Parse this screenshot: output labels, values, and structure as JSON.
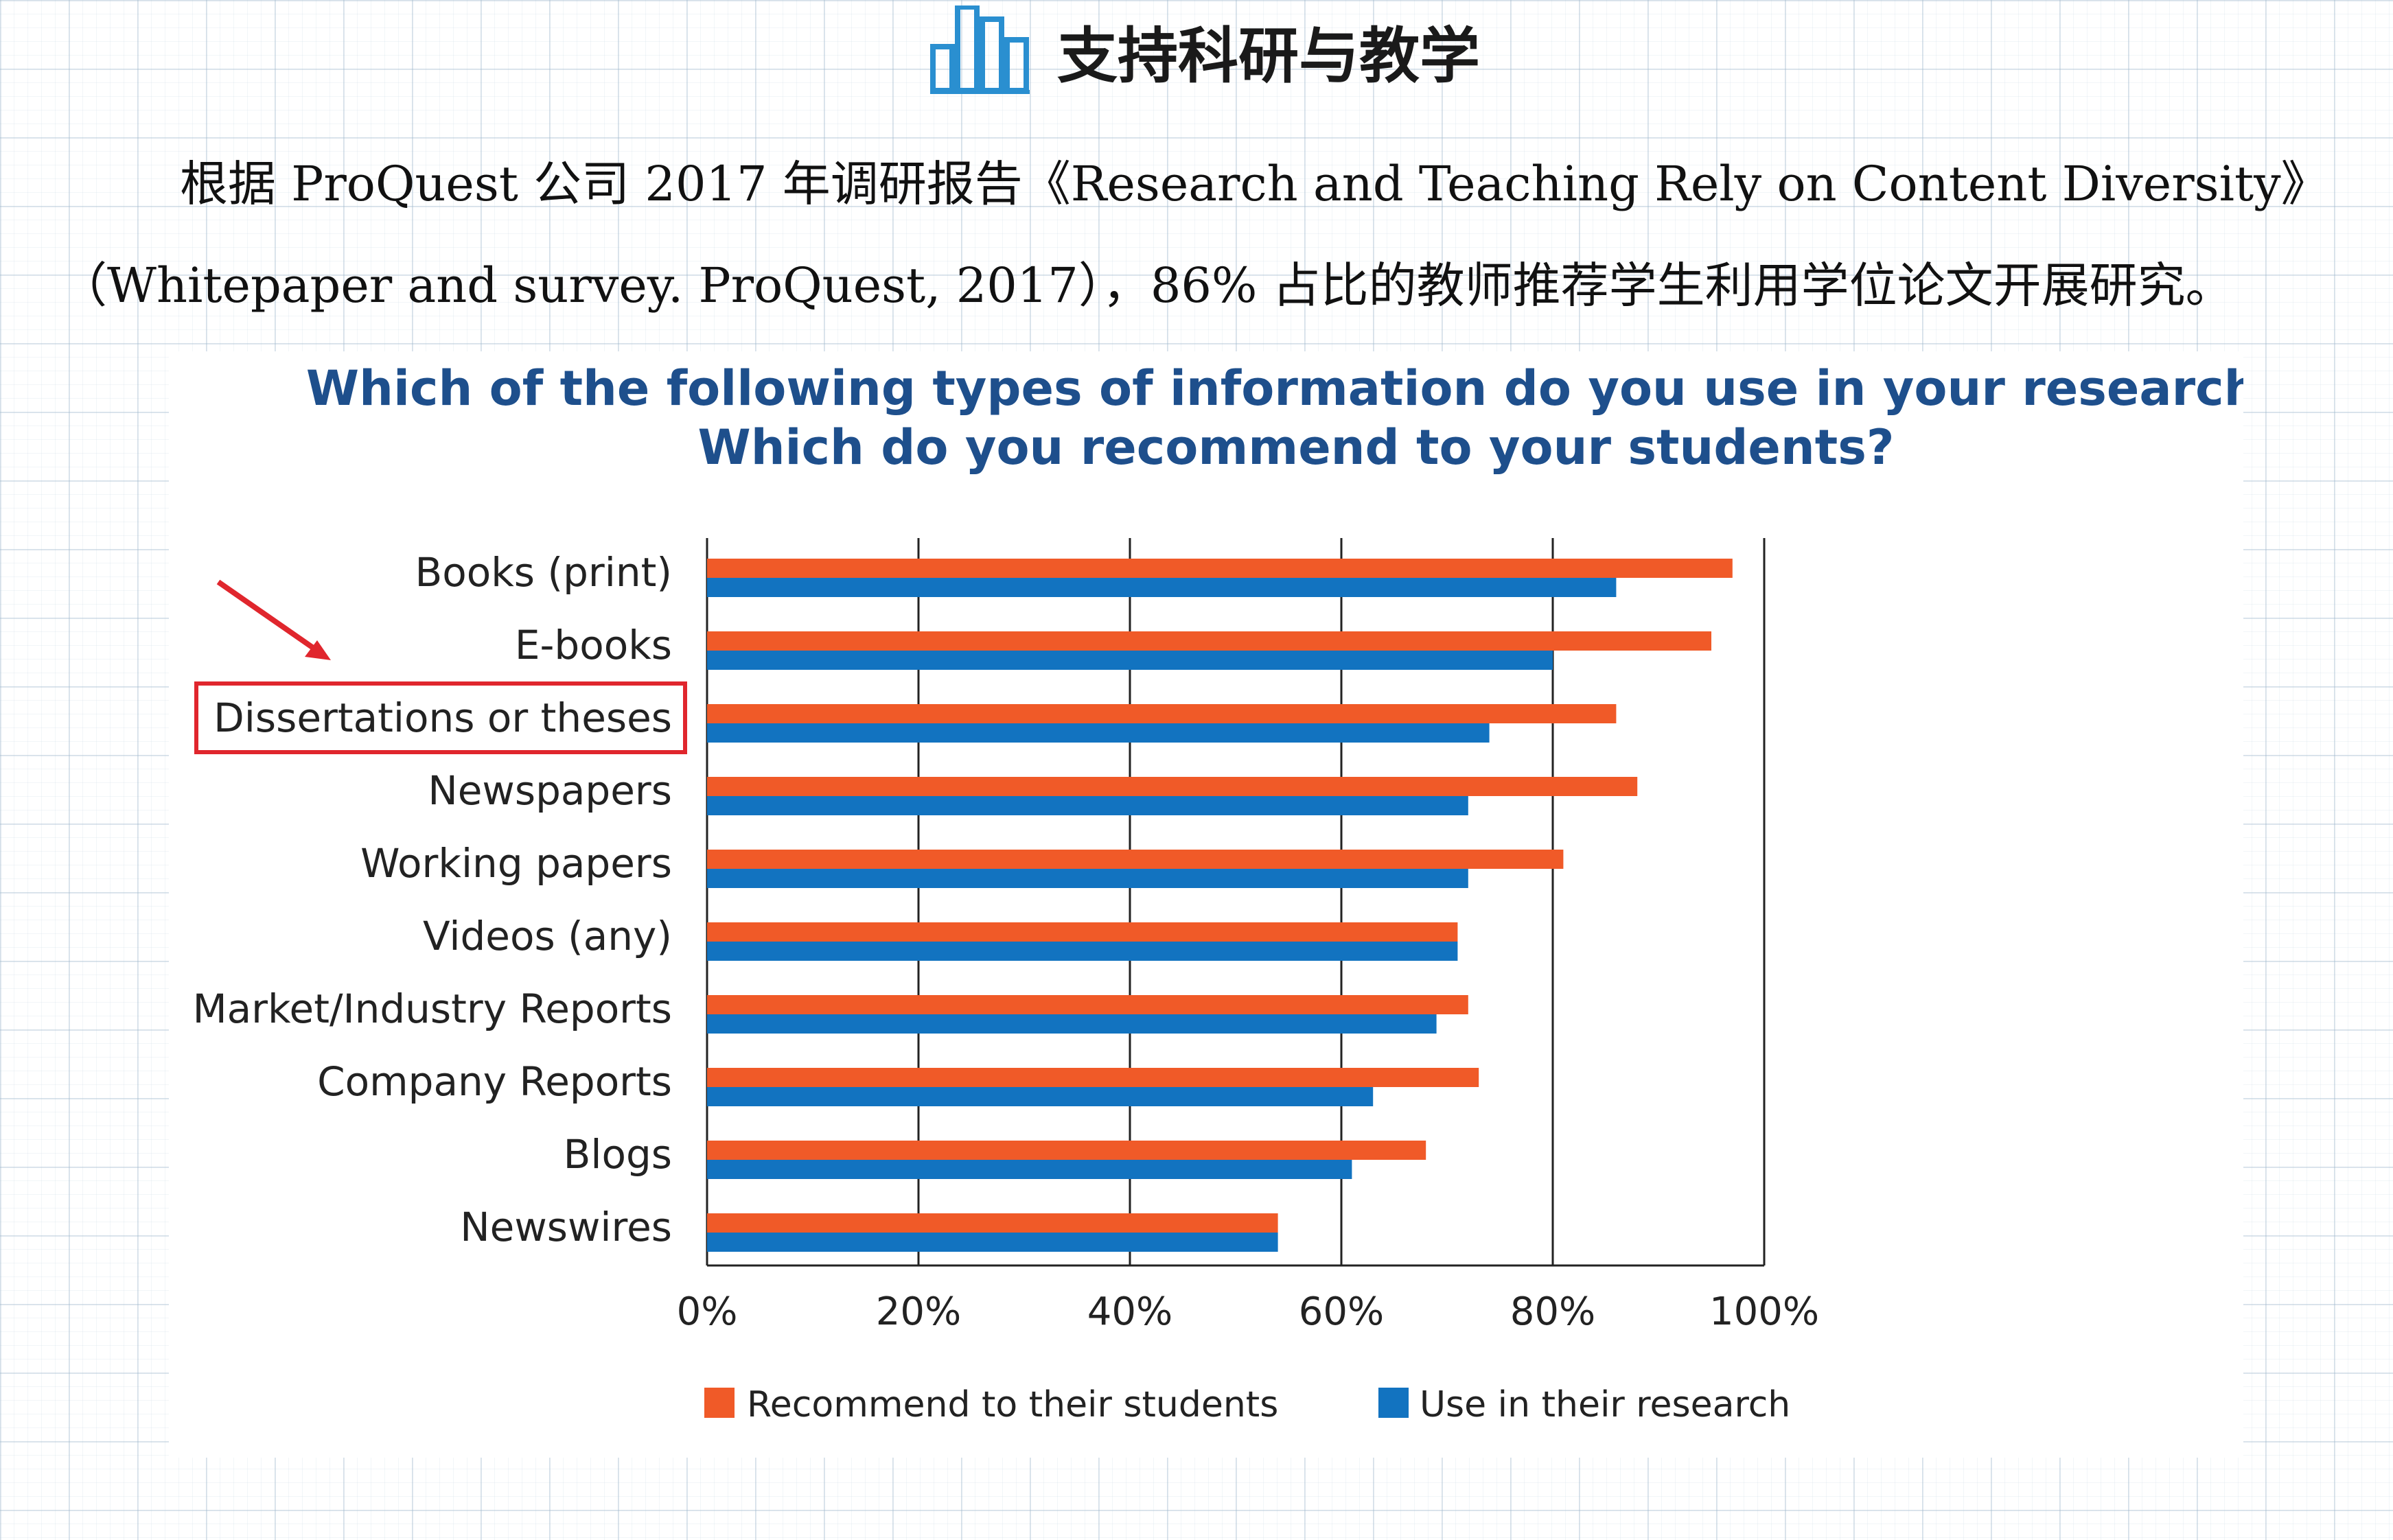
{
  "header": {
    "title": "支持科研与教学",
    "icon": "bar-chart-icon"
  },
  "intro": {
    "line1": "根据 ProQuest 公司 2017 年调研报告《Research and Teaching Rely on Content Diversity》",
    "line2": "（Whitepaper and survey. ProQuest, 2017），86% 占比的教师推荐学生利用学位论文开展研究。"
  },
  "colors": {
    "recommend": "#f05a28",
    "use": "#1273c0",
    "title": "#1e4f8c",
    "highlight": "#e0262d",
    "icon": "#2a8fd0"
  },
  "chart_data": {
    "type": "bar",
    "orientation": "horizontal",
    "title": "Which of the following types of information do you use in your research?",
    "subtitle": "Which do you recommend to your students?",
    "categories": [
      "Books (print)",
      "E-books",
      "Dissertations or theses",
      "Newspapers",
      "Working papers",
      "Videos (any)",
      "Market/Industry Reports",
      "Company Reports",
      "Blogs",
      "Newswires"
    ],
    "series": [
      {
        "name": "Recommend to their students",
        "values": [
          97,
          95,
          86,
          88,
          81,
          71,
          72,
          73,
          68,
          54
        ]
      },
      {
        "name": "Use in their research",
        "values": [
          86,
          80,
          74,
          72,
          72,
          71,
          69,
          63,
          61,
          54
        ]
      }
    ],
    "x_ticks": [
      "0%",
      "20%",
      "40%",
      "60%",
      "80%",
      "100%"
    ],
    "xlim": [
      0,
      100
    ],
    "grid": true,
    "legend_position": "bottom",
    "highlighted_category": "Dissertations or theses"
  }
}
